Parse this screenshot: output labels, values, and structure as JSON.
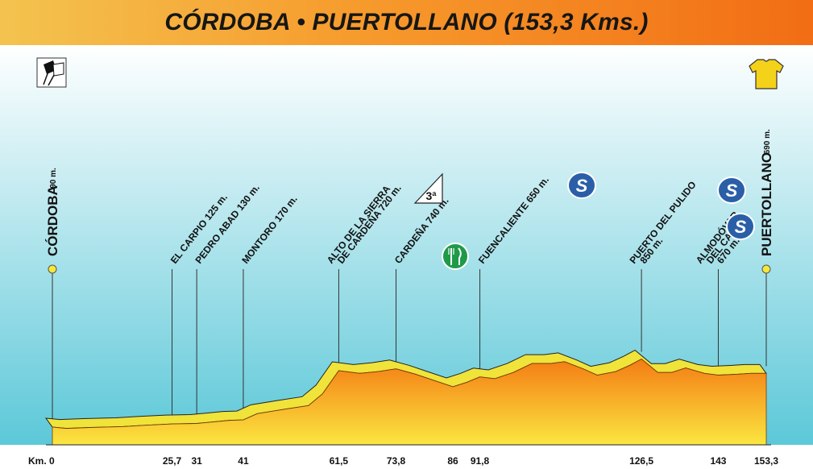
{
  "header": {
    "title": "CÓRDOBA • PUERTOLLANO (153,3 Kms.)"
  },
  "icons": {
    "start": "checkered-flags-icon",
    "finish": "yellow-jersey-icon",
    "feed": "fork-knife-icon",
    "sprint": "sprint-s-icon",
    "climb": "mountain-category-icon"
  },
  "colors": {
    "sky_top": "#ffffff",
    "sky_bottom": "#5cc8d8",
    "profile_top": "#f0e33a",
    "fill_top": "#f47c14",
    "fill_bottom": "#fbe640",
    "marker": "#f5e83a"
  },
  "chart_data": {
    "type": "area",
    "xlabel": "",
    "ylabel": "",
    "km_label": "Km. 0",
    "x_range": [
      0,
      153.3
    ],
    "profile": [
      {
        "km": 0,
        "alt": 90
      },
      {
        "km": 3,
        "alt": 75
      },
      {
        "km": 8,
        "alt": 85
      },
      {
        "km": 15,
        "alt": 95
      },
      {
        "km": 20,
        "alt": 110
      },
      {
        "km": 25.7,
        "alt": 125
      },
      {
        "km": 31,
        "alt": 130
      },
      {
        "km": 38,
        "alt": 165
      },
      {
        "km": 41,
        "alt": 170
      },
      {
        "km": 44,
        "alt": 240
      },
      {
        "km": 50,
        "alt": 290
      },
      {
        "km": 55,
        "alt": 330
      },
      {
        "km": 58,
        "alt": 460
      },
      {
        "km": 61.5,
        "alt": 720
      },
      {
        "km": 66,
        "alt": 690
      },
      {
        "km": 70,
        "alt": 710
      },
      {
        "km": 73.8,
        "alt": 740
      },
      {
        "km": 78,
        "alt": 680
      },
      {
        "km": 82,
        "alt": 610
      },
      {
        "km": 86,
        "alt": 540
      },
      {
        "km": 89,
        "alt": 590
      },
      {
        "km": 91.8,
        "alt": 650
      },
      {
        "km": 95,
        "alt": 630
      },
      {
        "km": 99,
        "alt": 700
      },
      {
        "km": 103,
        "alt": 800
      },
      {
        "km": 107,
        "alt": 800
      },
      {
        "km": 110,
        "alt": 820
      },
      {
        "km": 114,
        "alt": 740
      },
      {
        "km": 117,
        "alt": 670
      },
      {
        "km": 121,
        "alt": 710
      },
      {
        "km": 124,
        "alt": 780
      },
      {
        "km": 126.5,
        "alt": 850
      },
      {
        "km": 130,
        "alt": 700
      },
      {
        "km": 133,
        "alt": 700
      },
      {
        "km": 136,
        "alt": 750
      },
      {
        "km": 140,
        "alt": 690
      },
      {
        "km": 143,
        "alt": 670
      },
      {
        "km": 147,
        "alt": 680
      },
      {
        "km": 150,
        "alt": 690
      },
      {
        "km": 153.3,
        "alt": 690
      }
    ],
    "km_ticks": [
      {
        "km": 25.7,
        "label": "25,7"
      },
      {
        "km": 31,
        "label": "31"
      },
      {
        "km": 41,
        "label": "41"
      },
      {
        "km": 61.5,
        "label": "61,5"
      },
      {
        "km": 73.8,
        "label": "73,8"
      },
      {
        "km": 86,
        "label": "86"
      },
      {
        "km": 91.8,
        "label": "91,8"
      },
      {
        "km": 126.5,
        "label": "126,5"
      },
      {
        "km": 143,
        "label": "143"
      },
      {
        "km": 153.3,
        "label": "153,3"
      }
    ],
    "waypoints": [
      {
        "km": 0,
        "lines": [
          "CÓRDOBA"
        ],
        "alt_label": "90 m.",
        "kind": "city"
      },
      {
        "km": 25.7,
        "lines": [
          "EL CARPIO  125 m."
        ],
        "kind": "place"
      },
      {
        "km": 31,
        "lines": [
          "PEDRO ABAD  130 m."
        ],
        "kind": "place"
      },
      {
        "km": 41,
        "lines": [
          "MONTORO  170 m."
        ],
        "kind": "place"
      },
      {
        "km": 61.5,
        "lines": [
          "ALTO DE LA SIERRA",
          "DE CARDEÑA  720 m."
        ],
        "kind": "place"
      },
      {
        "km": 73.8,
        "lines": [
          "CARDEÑA  740 m."
        ],
        "kind": "place"
      },
      {
        "km": 91.8,
        "lines": [
          "FUENCALIENTE  650 m."
        ],
        "kind": "place"
      },
      {
        "km": 126.5,
        "lines": [
          "PUERTO DEL PULIDO",
          "850 m."
        ],
        "kind": "place"
      },
      {
        "km": 143,
        "lines": [
          "ALMODÓVAR",
          "DEL CAMPO",
          "670 m."
        ],
        "kind": "place"
      },
      {
        "km": 153.3,
        "lines": [
          "PUERTOLLANO"
        ],
        "alt_label": "690 m.",
        "kind": "city"
      }
    ],
    "climb": {
      "km": 61.5,
      "category": "3ª"
    },
    "feed_zone_km": 86,
    "sprints": [
      {
        "id": "sprint-1",
        "text": "S"
      },
      {
        "id": "sprint-2",
        "text": "S"
      },
      {
        "id": "sprint-3",
        "text": "S"
      }
    ]
  }
}
